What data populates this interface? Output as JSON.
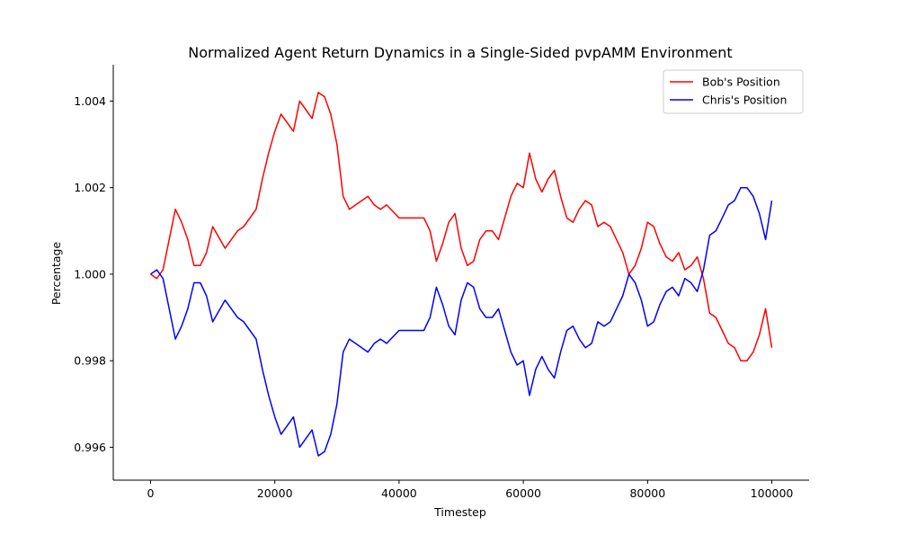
{
  "chart_data": {
    "type": "line",
    "title": "Normalized Agent Return Dynamics in a Single-Sided pvpAMM Environment",
    "xlabel": "Timestep",
    "ylabel": "Percentage",
    "xlim": [
      -6000,
      106000
    ],
    "ylim": [
      0.99524,
      1.00484
    ],
    "xticks": [
      {
        "value": 0,
        "label": "0"
      },
      {
        "value": 20000,
        "label": "20000"
      },
      {
        "value": 40000,
        "label": "40000"
      },
      {
        "value": 60000,
        "label": "60000"
      },
      {
        "value": 80000,
        "label": "80000"
      },
      {
        "value": 100000,
        "label": "100000"
      }
    ],
    "yticks": [
      {
        "value": 0.996,
        "label": "0.996"
      },
      {
        "value": 0.998,
        "label": "0.998"
      },
      {
        "value": 1.0,
        "label": "1.000"
      },
      {
        "value": 1.002,
        "label": "1.002"
      },
      {
        "value": 1.004,
        "label": "1.004"
      }
    ],
    "grid": false,
    "legend_position": "top-right",
    "series": [
      {
        "name": "Bob's Position",
        "color": "#ff0000",
        "x": [
          0,
          1000,
          2000,
          3000,
          4000,
          5000,
          6000,
          7000,
          8000,
          9000,
          10000,
          12000,
          13000,
          14000,
          15000,
          16000,
          17000,
          18000,
          19000,
          20000,
          21000,
          22000,
          23000,
          24000,
          25000,
          26000,
          27000,
          28000,
          29000,
          30000,
          31000,
          32000,
          33000,
          34000,
          35000,
          36000,
          37000,
          38000,
          40000,
          42000,
          44000,
          45000,
          46000,
          47000,
          48000,
          49000,
          50000,
          51000,
          52000,
          53000,
          54000,
          55000,
          56000,
          57000,
          58000,
          59000,
          60000,
          61000,
          62000,
          63000,
          64000,
          65000,
          66000,
          67000,
          68000,
          69000,
          70000,
          71000,
          72000,
          73000,
          74000,
          75000,
          76000,
          77000,
          78000,
          79000,
          80000,
          81000,
          82000,
          83000,
          84000,
          85000,
          86000,
          87000,
          88000,
          89000,
          90000,
          91000,
          92000,
          93000,
          94000,
          95000,
          96000,
          97000,
          98000,
          99000,
          100000
        ],
        "y": [
          1.0,
          0.9999,
          1.0001,
          1.0008,
          1.0015,
          1.0012,
          1.0008,
          1.0002,
          1.0002,
          1.0005,
          1.0011,
          1.0006,
          1.0008,
          1.001,
          1.0011,
          1.0013,
          1.0015,
          1.0022,
          1.0028,
          1.0033,
          1.0037,
          1.0035,
          1.0033,
          1.004,
          1.0038,
          1.0036,
          1.0042,
          1.0041,
          1.0037,
          1.003,
          1.0018,
          1.0015,
          1.0016,
          1.0017,
          1.0018,
          1.0016,
          1.0015,
          1.0016,
          1.0013,
          1.0013,
          1.0013,
          1.001,
          1.0003,
          1.0007,
          1.0012,
          1.0014,
          1.0006,
          1.0002,
          1.0003,
          1.0008,
          1.001,
          1.001,
          1.0008,
          1.0013,
          1.0018,
          1.0021,
          1.002,
          1.0028,
          1.0022,
          1.0019,
          1.0022,
          1.0024,
          1.0018,
          1.0013,
          1.0012,
          1.0015,
          1.0017,
          1.0016,
          1.0011,
          1.0012,
          1.0011,
          1.0008,
          1.0005,
          1.0,
          1.0002,
          1.0006,
          1.0012,
          1.0011,
          1.0007,
          1.0004,
          1.0003,
          1.0005,
          1.0001,
          1.0002,
          1.0004,
          0.9999,
          0.9991,
          0.999,
          0.9987,
          0.9984,
          0.9983,
          0.998,
          0.998,
          0.9982,
          0.9986,
          0.9992,
          0.9983
        ]
      },
      {
        "name": "Chris's Position",
        "color": "#0000ff",
        "x": [
          0,
          1000,
          2000,
          3000,
          4000,
          5000,
          6000,
          7000,
          8000,
          9000,
          10000,
          12000,
          13000,
          14000,
          15000,
          16000,
          17000,
          18000,
          19000,
          20000,
          21000,
          22000,
          23000,
          24000,
          25000,
          26000,
          27000,
          28000,
          29000,
          30000,
          31000,
          32000,
          33000,
          34000,
          35000,
          36000,
          37000,
          38000,
          40000,
          42000,
          44000,
          45000,
          46000,
          47000,
          48000,
          49000,
          50000,
          51000,
          52000,
          53000,
          54000,
          55000,
          56000,
          57000,
          58000,
          59000,
          60000,
          61000,
          62000,
          63000,
          64000,
          65000,
          66000,
          67000,
          68000,
          69000,
          70000,
          71000,
          72000,
          73000,
          74000,
          75000,
          76000,
          77000,
          78000,
          79000,
          80000,
          81000,
          82000,
          83000,
          84000,
          85000,
          86000,
          87000,
          88000,
          89000,
          90000,
          91000,
          92000,
          93000,
          94000,
          95000,
          96000,
          97000,
          98000,
          99000,
          100000
        ],
        "y": [
          1.0,
          1.0001,
          0.9999,
          0.9992,
          0.9985,
          0.9988,
          0.9992,
          0.9998,
          0.9998,
          0.9995,
          0.9989,
          0.9994,
          0.9992,
          0.999,
          0.9989,
          0.9987,
          0.9985,
          0.9978,
          0.9972,
          0.9967,
          0.9963,
          0.9965,
          0.9967,
          0.996,
          0.9962,
          0.9964,
          0.9958,
          0.9959,
          0.9963,
          0.997,
          0.9982,
          0.9985,
          0.9984,
          0.9983,
          0.9982,
          0.9984,
          0.9985,
          0.9984,
          0.9987,
          0.9987,
          0.9987,
          0.999,
          0.9997,
          0.9993,
          0.9988,
          0.9986,
          0.9994,
          0.9998,
          0.9997,
          0.9992,
          0.999,
          0.999,
          0.9992,
          0.9987,
          0.9982,
          0.9979,
          0.998,
          0.9972,
          0.9978,
          0.9981,
          0.9978,
          0.9976,
          0.9982,
          0.9987,
          0.9988,
          0.9985,
          0.9983,
          0.9984,
          0.9989,
          0.9988,
          0.9989,
          0.9992,
          0.9995,
          1.0,
          0.9998,
          0.9994,
          0.9988,
          0.9989,
          0.9993,
          0.9996,
          0.9997,
          0.9995,
          0.9999,
          0.9998,
          0.9996,
          1.0001,
          1.0009,
          1.001,
          1.0013,
          1.0016,
          1.0017,
          1.002,
          1.002,
          1.0018,
          1.0014,
          1.0008,
          1.0017
        ]
      }
    ]
  }
}
